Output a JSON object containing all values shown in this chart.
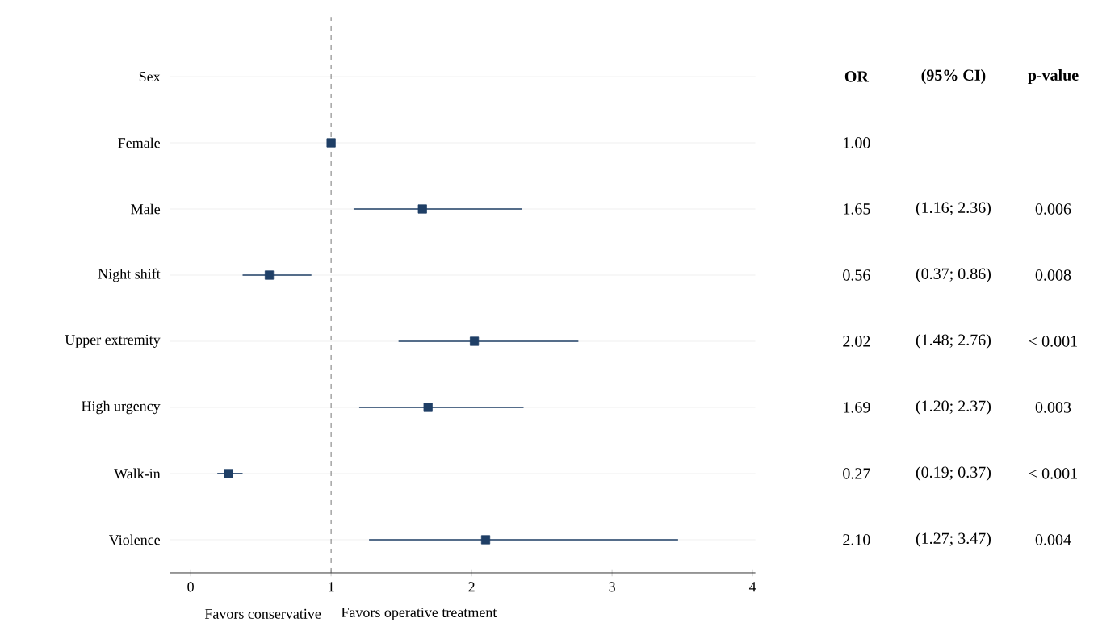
{
  "chart_data": {
    "type": "scatter",
    "orientation": "horizontal",
    "categories": [
      "Sex",
      "Female",
      "Male",
      "Night shift",
      "Upper extremity",
      "High urgency",
      "Walk-in",
      "Violence"
    ],
    "values": [
      null,
      1.0,
      1.65,
      0.56,
      2.02,
      1.69,
      0.27,
      2.1
    ],
    "errors": [
      null,
      null,
      [
        1.16,
        2.36
      ],
      [
        0.37,
        0.86
      ],
      [
        1.48,
        2.76
      ],
      [
        1.2,
        2.37
      ],
      [
        0.19,
        0.37
      ],
      [
        1.27,
        3.47
      ]
    ],
    "value_labels": [
      null,
      "1.00",
      "1.65",
      "0.56",
      "2.02",
      "1.69",
      "0.27",
      "2.10"
    ],
    "color": "#1f3f66",
    "marker": "square",
    "xlim": [
      -0.15,
      4.02
    ],
    "xticks": [
      0,
      1,
      2,
      3,
      4
    ],
    "ref_lines": [
      {
        "axis": "x",
        "value": 1,
        "line_style": "dashed",
        "color": "#555555"
      }
    ],
    "grid": "y",
    "annotations": [
      "Favors conservative",
      "Favors operative treatment",
      "OR",
      "(95% CI)",
      "p-value",
      "(1.16; 2.36)",
      "0.006",
      "(0.37; 0.86)",
      "0.008",
      "(1.48; 2.76)",
      "< 0.001",
      "(1.20; 2.37)",
      "0.003",
      "(0.19; 0.37)",
      "< 0.001",
      "(1.27; 3.47)",
      "0.004"
    ]
  }
}
